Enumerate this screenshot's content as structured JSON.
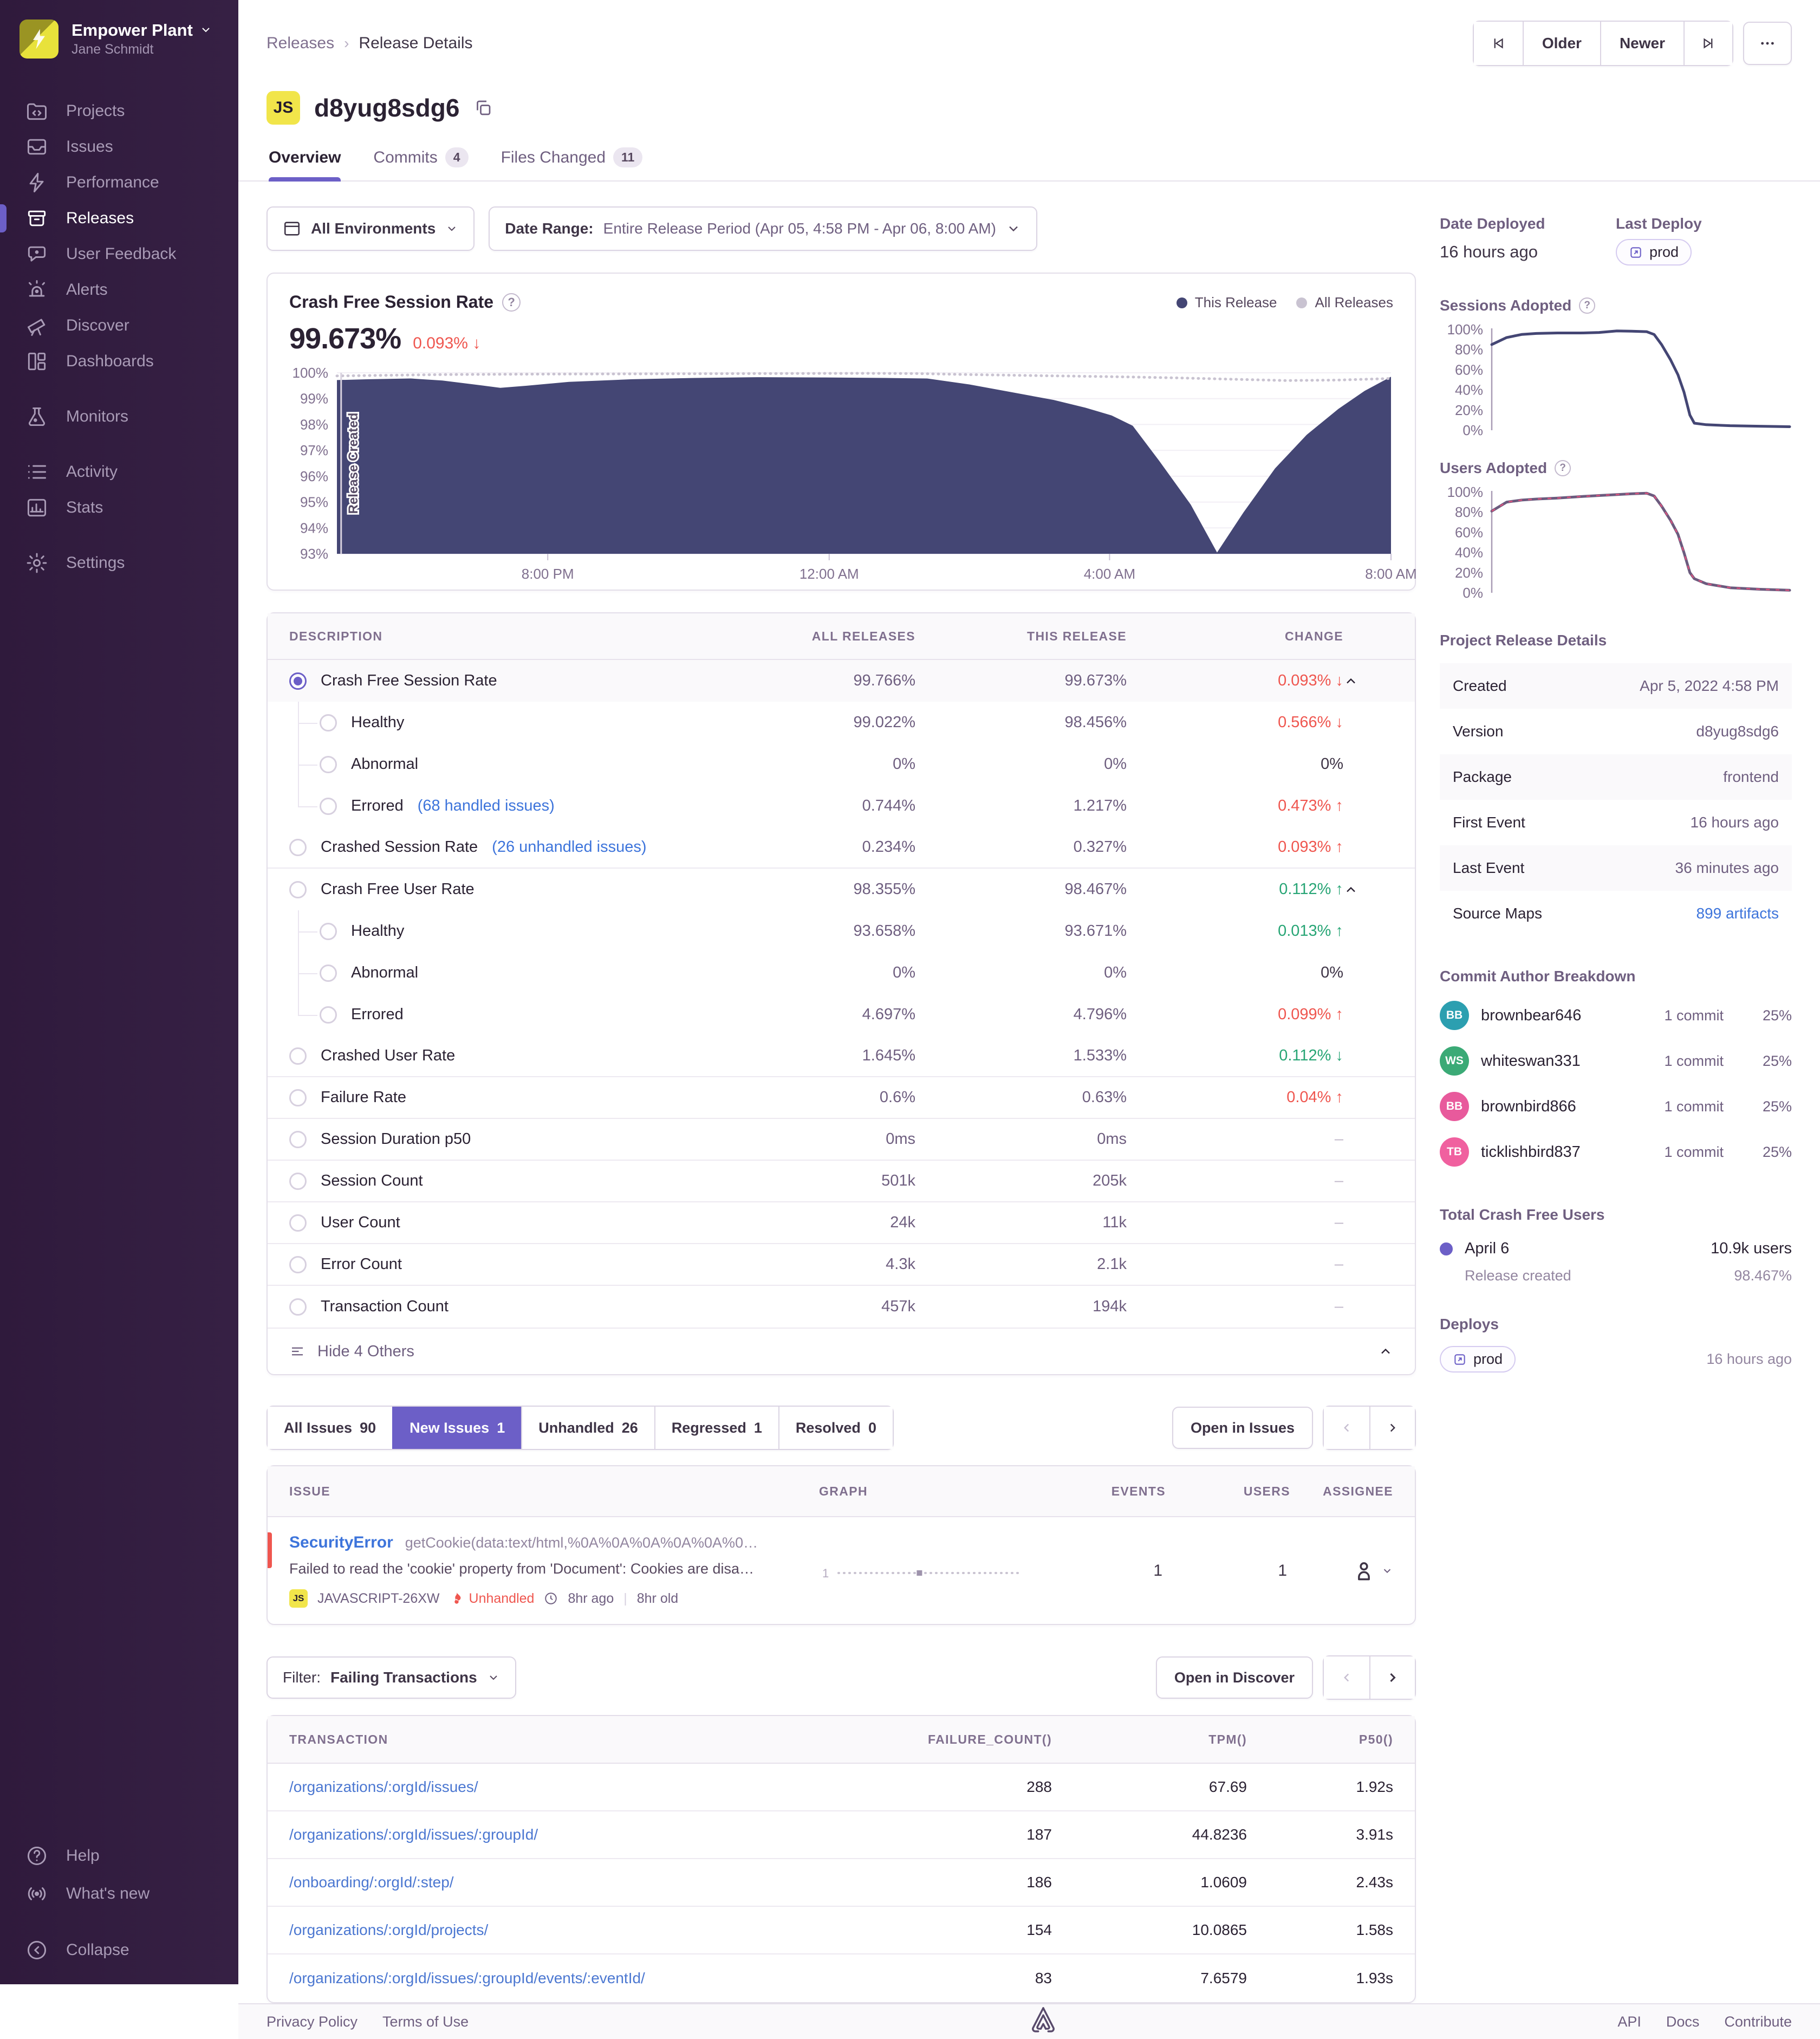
{
  "colors": {
    "accent": "#6C5FC7",
    "chart_purple": "#444674",
    "all_releases_gray": "#C9C3D1",
    "red": "#EF564F",
    "green": "#27A575",
    "link_blue": "#3D74DB",
    "js_yellow": "#F1E54A"
  },
  "sidebar": {
    "org_name": "Empower Plant",
    "user_name": "Jane Schmidt",
    "items": [
      {
        "label": "Projects",
        "icon": "projects-icon"
      },
      {
        "label": "Issues",
        "icon": "issues-icon"
      },
      {
        "label": "Performance",
        "icon": "performance-icon"
      },
      {
        "label": "Releases",
        "icon": "releases-icon",
        "active": true
      },
      {
        "label": "User Feedback",
        "icon": "user-feedback-icon"
      },
      {
        "label": "Alerts",
        "icon": "alerts-icon"
      },
      {
        "label": "Discover",
        "icon": "discover-icon"
      },
      {
        "label": "Dashboards",
        "icon": "dashboards-icon",
        "gap_after": true
      },
      {
        "label": "Monitors",
        "icon": "monitors-icon",
        "gap_after": true
      },
      {
        "label": "Activity",
        "icon": "activity-icon"
      },
      {
        "label": "Stats",
        "icon": "stats-icon",
        "gap_after": true
      },
      {
        "label": "Settings",
        "icon": "settings-icon"
      }
    ],
    "footer_items": [
      {
        "label": "Help",
        "icon": "help-icon"
      },
      {
        "label": "What's new",
        "icon": "whats-new-icon"
      },
      {
        "label": "Collapse",
        "icon": "collapse-icon",
        "gap_before": true
      }
    ]
  },
  "header": {
    "breadcrumb": [
      "Releases",
      "Release Details"
    ],
    "older_label": "Older",
    "newer_label": "Newer",
    "more_label": "…",
    "platform": "JS",
    "title": "d8yug8sdg6",
    "tabs": [
      {
        "label": "Overview",
        "active": true
      },
      {
        "label": "Commits",
        "count": "4"
      },
      {
        "label": "Files Changed",
        "count": "11"
      }
    ]
  },
  "filters": {
    "environments": "All Environments",
    "date_label": "Date Range:",
    "date_value": "Entire Release Period (Apr 05, 4:58 PM - Apr 06, 8:00 AM)"
  },
  "crash_chart": {
    "title": "Crash Free Session Rate",
    "value": "99.673%",
    "change": "0.093%",
    "change_arrow": "↓",
    "legend": [
      {
        "label": "This Release",
        "color": "#444674"
      },
      {
        "label": "All Releases",
        "color": "#C9C3D1"
      }
    ],
    "annotation": "Release Created"
  },
  "chart_data": [
    {
      "id": "crash_free_sessions",
      "type": "area",
      "title": "Crash Free Session Rate",
      "ylim": [
        93,
        100
      ],
      "yticks": [
        "100%",
        "99%",
        "98%",
        "97%",
        "96%",
        "95%",
        "94%",
        "93%"
      ],
      "xticks": [
        {
          "pos": 0.2,
          "label": "8:00 PM"
        },
        {
          "pos": 0.467,
          "label": "12:00 AM"
        },
        {
          "pos": 0.733,
          "label": "4:00 AM"
        },
        {
          "pos": 1.0,
          "label": "8:00 AM"
        }
      ],
      "grid": true,
      "annotation": {
        "pos": 0.004,
        "label": "Release Created"
      },
      "series": [
        {
          "name": "This Release",
          "color": "#444674",
          "fill": true,
          "points": [
            [
              0,
              99.72
            ],
            [
              0.03,
              99.75
            ],
            [
              0.07,
              99.78
            ],
            [
              0.1,
              99.7
            ],
            [
              0.13,
              99.55
            ],
            [
              0.155,
              99.42
            ],
            [
              0.18,
              99.5
            ],
            [
              0.22,
              99.65
            ],
            [
              0.28,
              99.75
            ],
            [
              0.34,
              99.8
            ],
            [
              0.4,
              99.83
            ],
            [
              0.46,
              99.82
            ],
            [
              0.52,
              99.8
            ],
            [
              0.56,
              99.78
            ],
            [
              0.6,
              99.55
            ],
            [
              0.64,
              99.25
            ],
            [
              0.68,
              98.95
            ],
            [
              0.71,
              98.65
            ],
            [
              0.735,
              98.35
            ],
            [
              0.755,
              97.95
            ],
            [
              0.78,
              96.6
            ],
            [
              0.81,
              94.9
            ],
            [
              0.835,
              93.05
            ],
            [
              0.86,
              94.6
            ],
            [
              0.89,
              96.3
            ],
            [
              0.92,
              97.6
            ],
            [
              0.95,
              98.6
            ],
            [
              0.975,
              99.3
            ],
            [
              1,
              99.85
            ]
          ]
        },
        {
          "name": "All Releases",
          "color": "#C9C3D1",
          "dotted": true,
          "points": [
            [
              0,
              99.88
            ],
            [
              0.1,
              99.93
            ],
            [
              0.2,
              99.95
            ],
            [
              0.3,
              99.96
            ],
            [
              0.4,
              99.97
            ],
            [
              0.5,
              99.98
            ],
            [
              0.55,
              99.97
            ],
            [
              0.6,
              99.93
            ],
            [
              0.65,
              99.9
            ],
            [
              0.7,
              99.87
            ],
            [
              0.75,
              99.84
            ],
            [
              0.8,
              99.8
            ],
            [
              0.85,
              99.75
            ],
            [
              0.9,
              99.7
            ],
            [
              0.95,
              99.72
            ],
            [
              1,
              99.78
            ]
          ]
        }
      ]
    },
    {
      "id": "sessions_adopted",
      "type": "line",
      "title": "Sessions Adopted",
      "ylim": [
        0,
        100
      ],
      "yticks": [
        "100%",
        "80%",
        "60%",
        "40%",
        "20%",
        "0%"
      ],
      "yaxis_line": true,
      "series": [
        {
          "name": "This Release",
          "color": "#444674",
          "points": [
            [
              0,
              85
            ],
            [
              0.05,
              92
            ],
            [
              0.1,
              95
            ],
            [
              0.15,
              96
            ],
            [
              0.22,
              96.5
            ],
            [
              0.3,
              96.5
            ],
            [
              0.36,
              97
            ],
            [
              0.42,
              98.5
            ],
            [
              0.47,
              98.2
            ],
            [
              0.52,
              97.8
            ],
            [
              0.545,
              95
            ],
            [
              0.57,
              85
            ],
            [
              0.6,
              70
            ],
            [
              0.625,
              55
            ],
            [
              0.645,
              38
            ],
            [
              0.665,
              15
            ],
            [
              0.68,
              7
            ],
            [
              0.72,
              5.5
            ],
            [
              0.8,
              4.5
            ],
            [
              0.9,
              4
            ],
            [
              1,
              3.5
            ]
          ]
        }
      ]
    },
    {
      "id": "users_adopted",
      "type": "line",
      "title": "Users Adopted",
      "ylim": [
        0,
        100
      ],
      "yticks": [
        "100%",
        "80%",
        "60%",
        "40%",
        "20%",
        "0%"
      ],
      "yaxis_line": true,
      "series": [
        {
          "name": "This Release",
          "color": "#6B5B7E",
          "overlay_dashed": "#D9537E",
          "points": [
            [
              0,
              81
            ],
            [
              0.05,
              90
            ],
            [
              0.1,
              92
            ],
            [
              0.15,
              93
            ],
            [
              0.22,
              94
            ],
            [
              0.3,
              95.5
            ],
            [
              0.36,
              96.5
            ],
            [
              0.42,
              97.5
            ],
            [
              0.47,
              98.2
            ],
            [
              0.52,
              98.8
            ],
            [
              0.545,
              96
            ],
            [
              0.57,
              86
            ],
            [
              0.6,
              72
            ],
            [
              0.625,
              58
            ],
            [
              0.645,
              40
            ],
            [
              0.665,
              20
            ],
            [
              0.68,
              14
            ],
            [
              0.72,
              9
            ],
            [
              0.8,
              5
            ],
            [
              0.9,
              3.5
            ],
            [
              1,
              2.5
            ]
          ]
        }
      ]
    },
    {
      "id": "issue_sparkline",
      "type": "sparkline",
      "axis_label": "1",
      "color": "#C9C3D1",
      "marker_color": "#9E93AC",
      "marker_pos": 0.45
    }
  ],
  "metrics": {
    "columns": [
      "DESCRIPTION",
      "ALL RELEASES",
      "THIS RELEASE",
      "CHANGE"
    ],
    "rows": [
      {
        "label": "Crash Free Session Rate",
        "radio": "selected",
        "all": "99.766%",
        "this": "99.673%",
        "change": "0.093%",
        "dir": "down",
        "tone": "red",
        "chevron": true,
        "selbg": true
      },
      {
        "label": "Healthy",
        "child": true,
        "radio": "empty",
        "all": "99.022%",
        "this": "98.456%",
        "change": "0.566%",
        "dir": "down",
        "tone": "red"
      },
      {
        "label": "Abnormal",
        "child": true,
        "radio": "empty",
        "all": "0%",
        "this": "0%",
        "change": "0%",
        "dir": "none",
        "tone": "plain"
      },
      {
        "label": "Errored",
        "link": "(68 handled issues)",
        "child": true,
        "last_child": true,
        "radio": "empty",
        "all": "0.744%",
        "this": "1.217%",
        "change": "0.473%",
        "dir": "up",
        "tone": "red"
      },
      {
        "label": "Crashed Session Rate",
        "link": "(26 unhandled issues)",
        "radio": "empty",
        "all": "0.234%",
        "this": "0.327%",
        "change": "0.093%",
        "dir": "up",
        "tone": "red",
        "group_end": true
      },
      {
        "label": "Crash Free User Rate",
        "radio": "empty",
        "all": "98.355%",
        "this": "98.467%",
        "change": "0.112%",
        "dir": "up",
        "tone": "green",
        "chevron": true
      },
      {
        "label": "Healthy",
        "child": true,
        "radio": "empty",
        "all": "93.658%",
        "this": "93.671%",
        "change": "0.013%",
        "dir": "up",
        "tone": "green"
      },
      {
        "label": "Abnormal",
        "child": true,
        "radio": "empty",
        "all": "0%",
        "this": "0%",
        "change": "0%",
        "dir": "none",
        "tone": "plain"
      },
      {
        "label": "Errored",
        "child": true,
        "last_child": true,
        "radio": "empty",
        "all": "4.697%",
        "this": "4.796%",
        "change": "0.099%",
        "dir": "up",
        "tone": "red"
      },
      {
        "label": "Crashed User Rate",
        "radio": "empty",
        "all": "1.645%",
        "this": "1.533%",
        "change": "0.112%",
        "dir": "down",
        "tone": "green",
        "group_end": true
      },
      {
        "label": "Failure Rate",
        "radio": "empty",
        "all": "0.6%",
        "this": "0.63%",
        "change": "0.04%",
        "dir": "up",
        "tone": "red",
        "group_end": true
      },
      {
        "label": "Session Duration p50",
        "radio": "empty",
        "all": "0ms",
        "this": "0ms",
        "change": "–",
        "dir": "none",
        "tone": "muted",
        "group_end": true
      },
      {
        "label": "Session Count",
        "radio": "empty",
        "all": "501k",
        "this": "205k",
        "change": "–",
        "dir": "none",
        "tone": "muted",
        "group_end": true
      },
      {
        "label": "User Count",
        "radio": "empty",
        "all": "24k",
        "this": "11k",
        "change": "–",
        "dir": "none",
        "tone": "muted",
        "group_end": true
      },
      {
        "label": "Error Count",
        "radio": "empty",
        "all": "4.3k",
        "this": "2.1k",
        "change": "–",
        "dir": "none",
        "tone": "muted",
        "group_end": true
      },
      {
        "label": "Transaction Count",
        "radio": "empty",
        "all": "457k",
        "this": "194k",
        "change": "–",
        "dir": "none",
        "tone": "muted"
      }
    ],
    "footer_label": "Hide 4 Others"
  },
  "issues": {
    "tabs": [
      {
        "label": "All Issues",
        "count": "90"
      },
      {
        "label": "New Issues",
        "count": "1",
        "active": true
      },
      {
        "label": "Unhandled",
        "count": "26"
      },
      {
        "label": "Regressed",
        "count": "1"
      },
      {
        "label": "Resolved",
        "count": "0"
      }
    ],
    "open_button": "Open in Issues",
    "columns": [
      "ISSUE",
      "GRAPH",
      "EVENTS",
      "USERS",
      "ASSIGNEE"
    ],
    "row": {
      "title": "SecurityError",
      "culprit": "getCookie(data:text/html,%0A%0A%0A%0A%0A%0…",
      "message": "Failed to read the 'cookie' property from 'Document': Cookies are disa…",
      "platform": "JS",
      "short_id": "JAVASCRIPT-26XW",
      "unhandled": "Unhandled",
      "age": "8hr ago",
      "old": "8hr old",
      "events": "1",
      "users": "1"
    }
  },
  "transactions": {
    "filter_label": "Filter:",
    "filter_value": "Failing Transactions",
    "open_button": "Open in Discover",
    "columns": [
      "TRANSACTION",
      "FAILURE_COUNT()",
      "TPM()",
      "P50()"
    ],
    "rows": [
      {
        "transaction": "/organizations/:orgId/issues/",
        "failure_count": "288",
        "tpm": "67.69",
        "p50": "1.92s"
      },
      {
        "transaction": "/organizations/:orgId/issues/:groupId/",
        "failure_count": "187",
        "tpm": "44.8236",
        "p50": "3.91s"
      },
      {
        "transaction": "/onboarding/:orgId/:step/",
        "failure_count": "186",
        "tpm": "1.0609",
        "p50": "2.43s"
      },
      {
        "transaction": "/organizations/:orgId/projects/",
        "failure_count": "154",
        "tpm": "10.0865",
        "p50": "1.58s"
      },
      {
        "transaction": "/organizations/:orgId/issues/:groupId/events/:eventId/",
        "failure_count": "83",
        "tpm": "7.6579",
        "p50": "1.93s"
      }
    ]
  },
  "aside": {
    "date_deployed_label": "Date Deployed",
    "date_deployed_value": "16 hours ago",
    "last_deploy_label": "Last Deploy",
    "last_deploy_env": "prod",
    "sessions_adopted_label": "Sessions Adopted",
    "users_adopted_label": "Users Adopted",
    "details_title": "Project Release Details",
    "details": [
      {
        "key": "Created",
        "value": "Apr 5, 2022 4:58 PM"
      },
      {
        "key": "Version",
        "value": "d8yug8sdg6"
      },
      {
        "key": "Package",
        "value": "frontend"
      },
      {
        "key": "First Event",
        "value": "16 hours ago"
      },
      {
        "key": "Last Event",
        "value": "36 minutes ago"
      },
      {
        "key": "Source Maps",
        "value": "899 artifacts",
        "link": true
      }
    ],
    "authors_title": "Commit Author Breakdown",
    "authors": [
      {
        "initials": "BB",
        "name": "brownbear646",
        "commits": "1 commit",
        "pct": "25%",
        "color": "#2C9FB0"
      },
      {
        "initials": "WS",
        "name": "whiteswan331",
        "commits": "1 commit",
        "pct": "25%",
        "color": "#3BAA76"
      },
      {
        "initials": "BB",
        "name": "brownbird866",
        "commits": "1 commit",
        "pct": "25%",
        "color": "#E85A9C"
      },
      {
        "initials": "TB",
        "name": "ticklishbird837",
        "commits": "1 commit",
        "pct": "25%",
        "color": "#F0609F"
      }
    ],
    "tcfu_title": "Total Crash Free Users",
    "tcfu_date": "April 6",
    "tcfu_users": "10.9k users",
    "tcfu_sub": "Release created",
    "tcfu_pct": "98.467%",
    "deploys_title": "Deploys",
    "deploys_env": "prod",
    "deploys_when": "16 hours ago"
  },
  "footer": {
    "left_links": [
      "Privacy Policy",
      "Terms of Use"
    ],
    "right_links": [
      "API",
      "Docs",
      "Contribute"
    ]
  }
}
